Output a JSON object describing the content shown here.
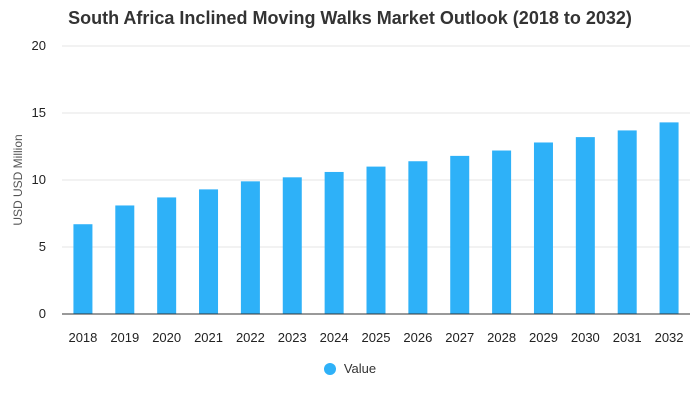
{
  "chart_data": {
    "type": "bar",
    "title": "South Africa Inclined Moving Walks Market Outlook (2018 to 2032)",
    "xlabel": "",
    "ylabel": "USD USD Million",
    "ylim": [
      0,
      20
    ],
    "yticks": [
      0,
      5,
      10,
      15,
      20
    ],
    "grid": true,
    "legend_position": "bottom",
    "categories": [
      "2018",
      "2019",
      "2020",
      "2021",
      "2022",
      "2023",
      "2024",
      "2025",
      "2026",
      "2027",
      "2028",
      "2029",
      "2030",
      "2031",
      "2032"
    ],
    "series": [
      {
        "name": "Value",
        "color": "#2eb1f8",
        "values": [
          6.7,
          8.1,
          8.7,
          9.3,
          9.9,
          10.2,
          10.6,
          11.0,
          11.4,
          11.8,
          12.2,
          12.8,
          13.2,
          13.7,
          14.3
        ]
      }
    ]
  }
}
